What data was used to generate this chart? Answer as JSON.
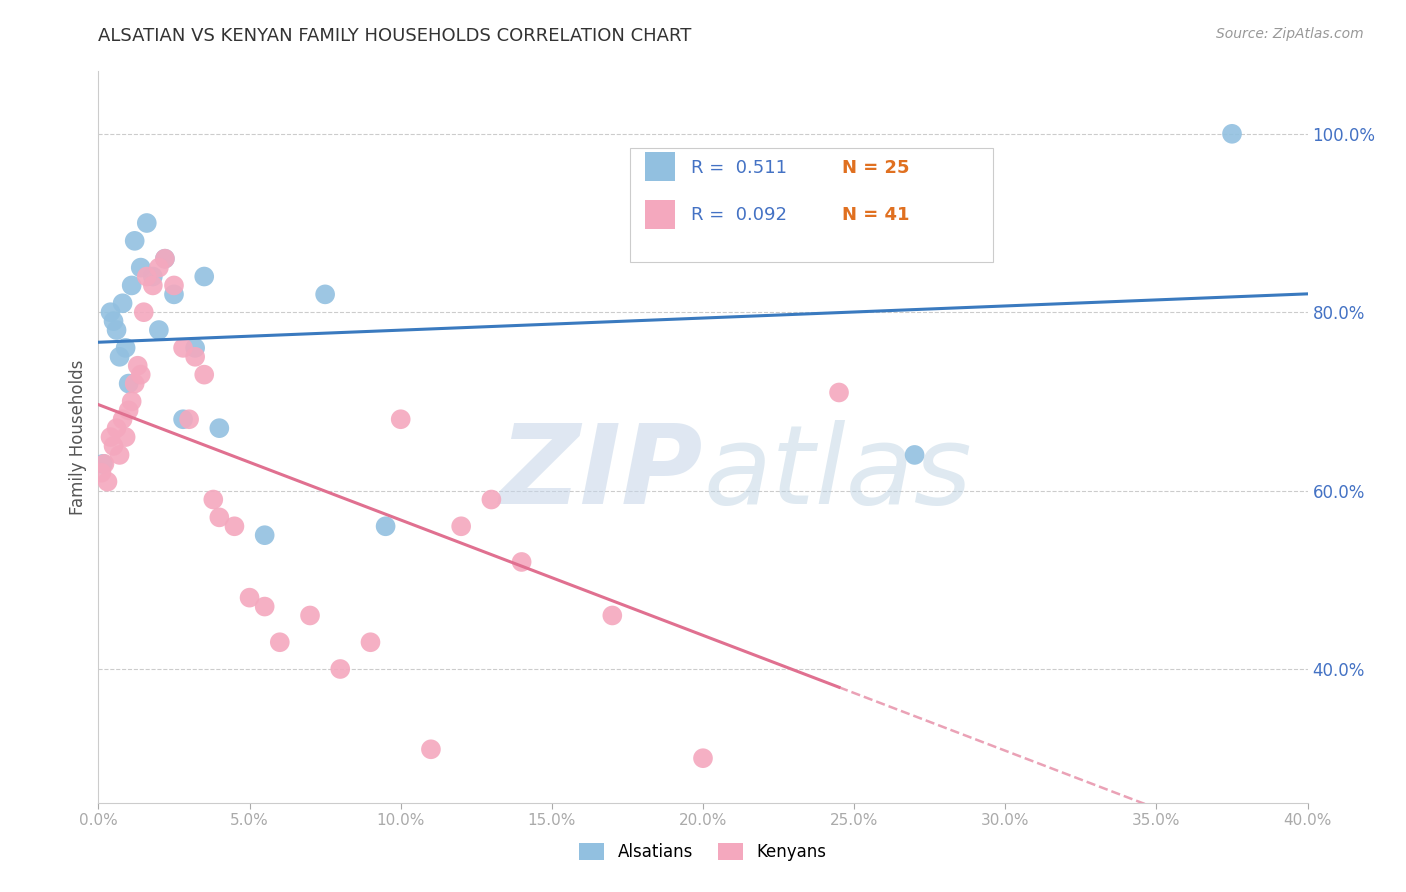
{
  "title": "ALSATIAN VS KENYAN FAMILY HOUSEHOLDS CORRELATION CHART",
  "source": "Source: ZipAtlas.com",
  "ylabel": "Family Households",
  "legend_blue_r": "0.511",
  "legend_blue_n": "25",
  "legend_pink_r": "0.092",
  "legend_pink_n": "41",
  "blue_color": "#92c0e0",
  "pink_color": "#f4a8be",
  "blue_line_color": "#3a7abf",
  "pink_line_color": "#e07090",
  "alsatian_x": [
    0.15,
    0.4,
    0.5,
    0.6,
    0.7,
    0.8,
    0.9,
    1.0,
    1.1,
    1.2,
    1.4,
    1.6,
    1.8,
    2.0,
    2.2,
    2.5,
    2.8,
    3.2,
    3.5,
    4.0,
    5.5,
    7.5,
    9.5,
    27.0,
    37.5
  ],
  "alsatian_y": [
    63,
    80,
    79,
    78,
    75,
    81,
    76,
    72,
    83,
    88,
    85,
    90,
    84,
    78,
    86,
    82,
    68,
    76,
    84,
    67,
    55,
    82,
    56,
    64,
    100
  ],
  "kenyan_x": [
    0.1,
    0.2,
    0.3,
    0.4,
    0.5,
    0.6,
    0.7,
    0.8,
    0.9,
    1.0,
    1.1,
    1.2,
    1.3,
    1.4,
    1.5,
    1.6,
    1.8,
    2.0,
    2.2,
    2.5,
    2.8,
    3.0,
    3.2,
    3.5,
    3.8,
    4.0,
    4.5,
    5.0,
    5.5,
    6.0,
    7.0,
    8.0,
    9.0,
    10.0,
    11.0,
    12.0,
    13.0,
    14.0,
    17.0,
    20.0,
    24.5
  ],
  "kenyan_y": [
    62,
    63,
    61,
    66,
    65,
    67,
    64,
    68,
    66,
    69,
    70,
    72,
    74,
    73,
    80,
    84,
    83,
    85,
    86,
    83,
    76,
    68,
    75,
    73,
    59,
    57,
    56,
    48,
    47,
    43,
    46,
    40,
    43,
    68,
    31,
    56,
    59,
    52,
    46,
    30,
    71
  ],
  "xmin": 0.0,
  "xmax": 40.0,
  "ymin": 25.0,
  "ymax": 107.0,
  "right_yticks": [
    40.0,
    60.0,
    80.0,
    100.0
  ],
  "xtick_step": 5.0,
  "grid_color": "#cccccc",
  "watermark_zip_color": "#c5d5e8",
  "watermark_atlas_color": "#b8cfe0"
}
